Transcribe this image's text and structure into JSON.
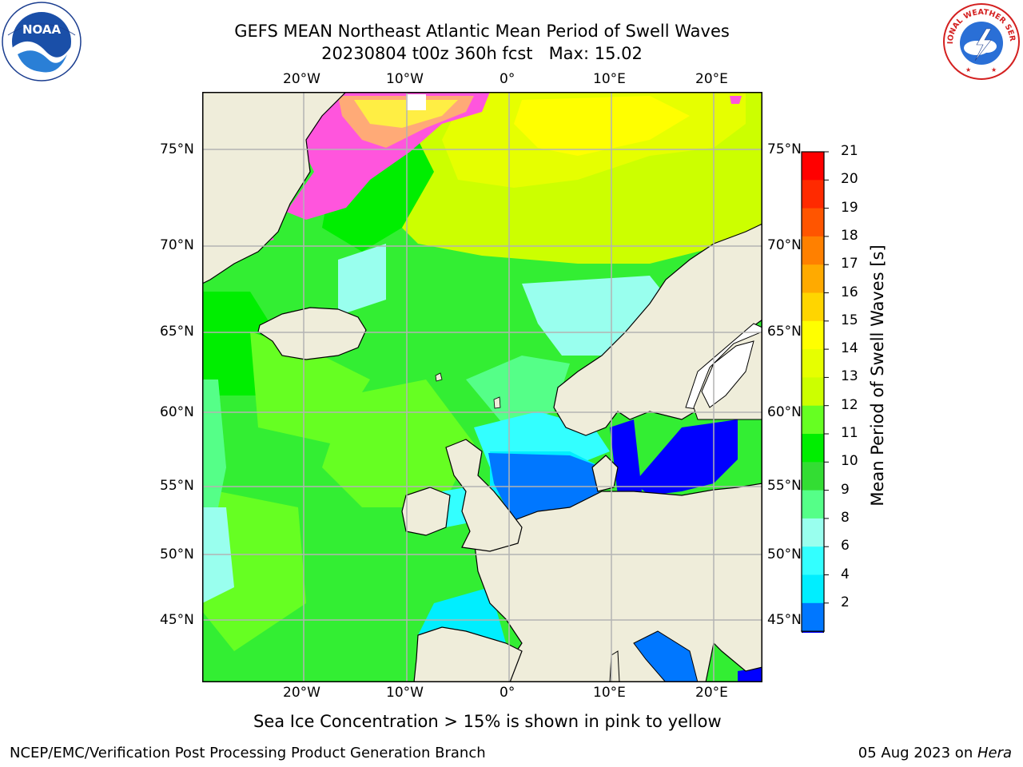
{
  "header": {
    "title_line1": "GEFS MEAN Northeast Atlantic Mean Period of Swell Waves",
    "title_line2": "20230804 t00z 360h fcst   Max: 15.02"
  },
  "logos": {
    "left": {
      "icon": "noaa-logo",
      "text": "NOAA",
      "ring_text": "NATIONAL OCEANIC AND ATMOSPHERIC ADMINISTRATION · U.S. DEPARTMENT OF COMMERCE"
    },
    "right": {
      "icon": "nws-logo",
      "ring_text": "NATIONAL WEATHER SERVICE"
    }
  },
  "map": {
    "lon_ticks_top": [
      "20°W",
      "10°W",
      "0°",
      "10°E",
      "20°E"
    ],
    "lon_ticks_bottom": [
      "20°W",
      "10°W",
      "0°",
      "10°E",
      "20°E"
    ],
    "lat_ticks_left": [
      "75°N",
      "70°N",
      "65°N",
      "60°N",
      "55°N",
      "50°N",
      "45°N"
    ],
    "lat_ticks_right": [
      "75°N",
      "70°N",
      "65°N",
      "60°N",
      "55°N",
      "50°N",
      "45°N"
    ],
    "land_color": "#efedda",
    "ocean_default_color": "#33ee33"
  },
  "colorbar": {
    "label": "Mean Period of Swell Waves [s]",
    "ticks": [
      "21",
      "20",
      "19",
      "18",
      "17",
      "16",
      "15",
      "14",
      "13",
      "12",
      "11",
      "10",
      "9",
      "8",
      "6",
      "4",
      "2"
    ],
    "colors_top_to_bottom": [
      "#ff0000",
      "#ff2a00",
      "#ff5500",
      "#ff8000",
      "#ffaa00",
      "#ffd500",
      "#ffff00",
      "#e6ff00",
      "#ccff00",
      "#66ff22",
      "#00ee00",
      "#33dd33",
      "#55ff88",
      "#99ffee",
      "#33ffff",
      "#00eeff",
      "#0077ff"
    ],
    "extend_color": "#0000ff"
  },
  "note": "Sea Ice Concentration > 15% is shown in pink to yellow",
  "footer": {
    "left": "NCEP/EMC/Verification Post Processing Product Generation Branch",
    "right_prefix": "05 Aug 2023 on ",
    "right_machine": "Hera"
  }
}
